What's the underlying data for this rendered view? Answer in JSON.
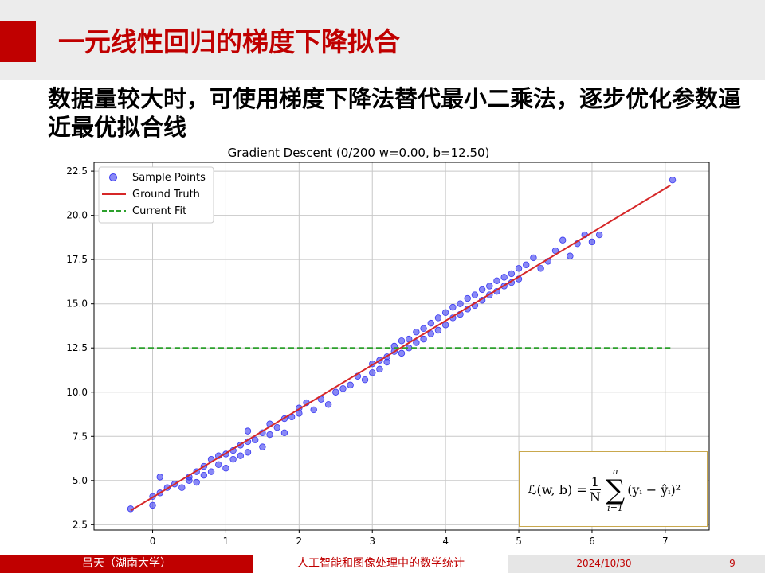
{
  "slide": {
    "title": "一元线性回归的梯度下降拟合",
    "subtitle": "数据量较大时，可使用梯度下降法替代最小二乘法，逐步优化参数逼近最优拟合线"
  },
  "formula": {
    "lhs": "ℒ(w, b) =",
    "numerator": "1",
    "denominator": "N",
    "sum_upper": "n",
    "sum_lower": "i=1",
    "summand": "(yᵢ − ŷᵢ)²"
  },
  "footer": {
    "author": "吕天（湖南大学）",
    "course": "人工智能和图像处理中的数学统计",
    "date": "2024/10/30",
    "page": "9"
  },
  "chart_data": {
    "type": "scatter",
    "title": "Gradient Descent (0/200 w=0.00, b=12.50)",
    "xlim": [
      -0.8,
      7.6
    ],
    "ylim": [
      2.2,
      23.0
    ],
    "xticks": [
      "0",
      "1",
      "2",
      "3",
      "4",
      "5",
      "6",
      "7"
    ],
    "yticks": [
      "2.5",
      "5.0",
      "7.5",
      "10.0",
      "12.5",
      "15.0",
      "17.5",
      "20.0",
      "22.5"
    ],
    "grid": true,
    "legend_position": "top-left",
    "scatter_color": "#3a3af0",
    "ground_truth_color": "#d62728",
    "fit_color": "#2ca02c",
    "series": [
      {
        "name": "Sample Points",
        "kind": "scatter",
        "points": [
          [
            -0.3,
            3.4
          ],
          [
            0,
            3.6
          ],
          [
            0,
            4.1
          ],
          [
            0.1,
            4.3
          ],
          [
            0.2,
            4.6
          ],
          [
            0.1,
            5.2
          ],
          [
            0.3,
            4.8
          ],
          [
            0.4,
            4.6
          ],
          [
            0.5,
            5.2
          ],
          [
            0.5,
            5.0
          ],
          [
            0.6,
            5.5
          ],
          [
            0.6,
            4.9
          ],
          [
            0.7,
            5.8
          ],
          [
            0.7,
            5.3
          ],
          [
            0.8,
            6.2
          ],
          [
            0.8,
            5.5
          ],
          [
            0.9,
            6.4
          ],
          [
            0.9,
            5.9
          ],
          [
            1.0,
            5.7
          ],
          [
            1.0,
            6.5
          ],
          [
            1.1,
            6.7
          ],
          [
            1.1,
            6.2
          ],
          [
            1.2,
            7.0
          ],
          [
            1.2,
            6.4
          ],
          [
            1.3,
            7.2
          ],
          [
            1.3,
            6.6
          ],
          [
            1.3,
            7.8
          ],
          [
            1.4,
            7.3
          ],
          [
            1.5,
            7.7
          ],
          [
            1.5,
            6.9
          ],
          [
            1.6,
            7.6
          ],
          [
            1.6,
            8.2
          ],
          [
            1.7,
            8.0
          ],
          [
            1.8,
            7.7
          ],
          [
            1.8,
            8.5
          ],
          [
            1.9,
            8.6
          ],
          [
            2.0,
            9.1
          ],
          [
            2.0,
            8.8
          ],
          [
            2.1,
            9.4
          ],
          [
            2.2,
            9.0
          ],
          [
            2.3,
            9.6
          ],
          [
            2.4,
            9.3
          ],
          [
            2.5,
            10.0
          ],
          [
            2.6,
            10.2
          ],
          [
            2.7,
            10.4
          ],
          [
            2.8,
            10.9
          ],
          [
            2.9,
            10.7
          ],
          [
            3.0,
            11.1
          ],
          [
            3.0,
            11.6
          ],
          [
            3.1,
            11.8
          ],
          [
            3.1,
            11.3
          ],
          [
            3.2,
            12.0
          ],
          [
            3.2,
            11.7
          ],
          [
            3.3,
            12.3
          ],
          [
            3.3,
            12.6
          ],
          [
            3.4,
            12.9
          ],
          [
            3.4,
            12.2
          ],
          [
            3.5,
            13.0
          ],
          [
            3.5,
            12.5
          ],
          [
            3.6,
            12.8
          ],
          [
            3.6,
            13.4
          ],
          [
            3.7,
            13.6
          ],
          [
            3.7,
            13.0
          ],
          [
            3.8,
            13.9
          ],
          [
            3.8,
            13.3
          ],
          [
            3.9,
            14.2
          ],
          [
            3.9,
            13.5
          ],
          [
            4.0,
            14.5
          ],
          [
            4.0,
            13.8
          ],
          [
            4.1,
            14.8
          ],
          [
            4.1,
            14.2
          ],
          [
            4.2,
            15.0
          ],
          [
            4.2,
            14.4
          ],
          [
            4.3,
            15.3
          ],
          [
            4.3,
            14.7
          ],
          [
            4.4,
            15.5
          ],
          [
            4.4,
            14.9
          ],
          [
            4.5,
            15.8
          ],
          [
            4.5,
            15.2
          ],
          [
            4.6,
            16.0
          ],
          [
            4.6,
            15.5
          ],
          [
            4.7,
            16.3
          ],
          [
            4.7,
            15.7
          ],
          [
            4.8,
            16.5
          ],
          [
            4.8,
            16.0
          ],
          [
            4.9,
            16.7
          ],
          [
            4.9,
            16.2
          ],
          [
            5.0,
            17.0
          ],
          [
            5.0,
            16.4
          ],
          [
            5.1,
            17.2
          ],
          [
            5.2,
            17.6
          ],
          [
            5.3,
            17.0
          ],
          [
            5.4,
            17.4
          ],
          [
            5.5,
            18.0
          ],
          [
            5.6,
            18.6
          ],
          [
            5.7,
            17.7
          ],
          [
            5.8,
            18.4
          ],
          [
            5.9,
            18.9
          ],
          [
            6.0,
            18.5
          ],
          [
            6.1,
            18.9
          ],
          [
            7.1,
            22.0
          ]
        ]
      },
      {
        "name": "Ground Truth",
        "kind": "line",
        "points": [
          [
            -0.3,
            3.3
          ],
          [
            7.07,
            21.7
          ]
        ]
      },
      {
        "name": "Current Fit",
        "kind": "dashed-line",
        "points": [
          [
            -0.3,
            12.5
          ],
          [
            7.07,
            12.5
          ]
        ]
      }
    ]
  }
}
